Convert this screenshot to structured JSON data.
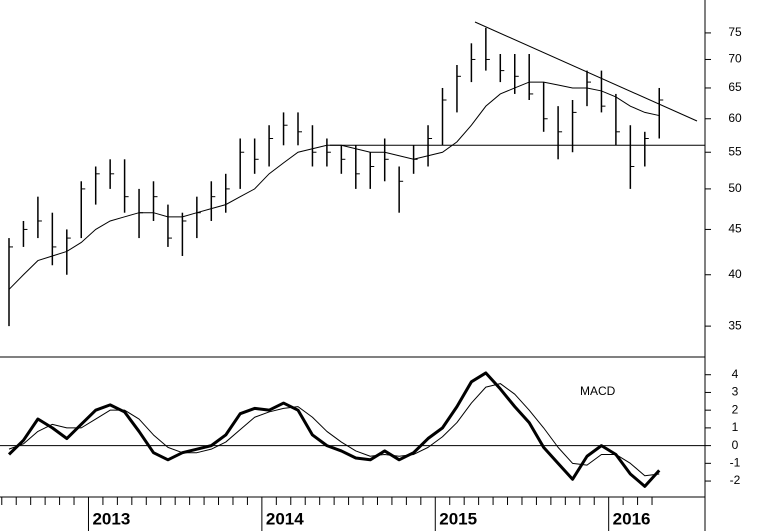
{
  "chart_data": {
    "type": "ohlc",
    "color": "#000000",
    "log_scale": true,
    "categories": [
      null,
      null,
      null,
      null,
      null,
      null,
      "2013",
      null,
      null,
      null,
      null,
      null,
      null,
      null,
      null,
      null,
      null,
      null,
      "2014",
      null,
      null,
      null,
      null,
      null,
      null,
      null,
      null,
      null,
      null,
      null,
      "2015",
      null,
      null,
      null,
      null,
      null,
      null,
      null,
      null,
      null,
      null,
      null,
      "2016",
      null,
      null,
      null
    ],
    "high": [
      44,
      46,
      49,
      47,
      45,
      51,
      53,
      54,
      54,
      50,
      51,
      48,
      47,
      49,
      51,
      52,
      57,
      57,
      59,
      61,
      61,
      59,
      57,
      56,
      56,
      55,
      57,
      53,
      56,
      59,
      65,
      69,
      73,
      76,
      71,
      71,
      71,
      66,
      62,
      63,
      68,
      68,
      64,
      59,
      58,
      65
    ],
    "low": [
      35,
      43,
      44,
      41,
      40,
      44,
      48,
      50,
      47,
      44,
      46,
      43,
      42,
      44,
      46,
      47,
      50,
      52,
      53,
      56,
      56,
      53,
      53,
      52,
      50,
      50,
      51,
      47,
      52,
      53,
      56,
      61,
      66,
      68,
      66,
      64,
      63,
      58,
      54,
      55,
      62,
      61,
      56,
      50,
      53,
      57
    ],
    "close": [
      43,
      45,
      46,
      43,
      44,
      50,
      52,
      52,
      49,
      47,
      49,
      44,
      46,
      47,
      49,
      50,
      55,
      54,
      57,
      59,
      58,
      55,
      55,
      54,
      52,
      53,
      54,
      51,
      54,
      57,
      63,
      67,
      70,
      70,
      68,
      67,
      64,
      60,
      58,
      61,
      66,
      62,
      58,
      53,
      57,
      63
    ],
    "moving_average": [
      38.5,
      40,
      41.5,
      42,
      42.5,
      43.5,
      45,
      46,
      46.5,
      47,
      47,
      46.5,
      46.5,
      47,
      47.5,
      48,
      49,
      50,
      52,
      53.5,
      55,
      55.5,
      56,
      56,
      55.5,
      55,
      55,
      54.5,
      54,
      54.5,
      55,
      56.5,
      59,
      62,
      64,
      65,
      66,
      66,
      65.5,
      65,
      65,
      64.5,
      63.5,
      62,
      61,
      60.5
    ],
    "support_level": 56,
    "ylim": [
      32.3,
      81.7
    ],
    "yticks": [
      35,
      40,
      45,
      50,
      55,
      60,
      65,
      70,
      75
    ],
    "macd": {
      "type": "line",
      "annotation": "MACD",
      "series": [
        {
          "color": "#000000",
          "values": [
            -0.5,
            0.3,
            1.5,
            1.0,
            0.4,
            1.2,
            2.0,
            2.3,
            1.9,
            0.8,
            -0.4,
            -0.8,
            -0.4,
            -0.2,
            0.0,
            0.6,
            1.8,
            2.1,
            2.0,
            2.4,
            2.0,
            0.6,
            0.0,
            -0.3,
            -0.7,
            -0.8,
            -0.3,
            -0.8,
            -0.4,
            0.4,
            1.0,
            2.2,
            3.6,
            4.1,
            3.2,
            2.2,
            1.3,
            -0.1,
            -1.0,
            -1.9,
            -0.6,
            0.0,
            -0.5,
            -1.6,
            -2.3,
            -1.4
          ]
        },
        {
          "color": "#000000",
          "values": [
            -0.2,
            0.1,
            0.8,
            1.2,
            1.0,
            1.0,
            1.5,
            2.0,
            2.0,
            1.5,
            0.6,
            -0.1,
            -0.4,
            -0.4,
            -0.2,
            0.2,
            0.9,
            1.6,
            1.9,
            2.1,
            2.2,
            1.6,
            0.8,
            0.2,
            -0.3,
            -0.6,
            -0.5,
            -0.6,
            -0.5,
            -0.1,
            0.5,
            1.3,
            2.4,
            3.3,
            3.5,
            2.9,
            2.0,
            1.0,
            -0.1,
            -1.0,
            -1.1,
            -0.5,
            -0.5,
            -1.0,
            -1.7,
            -1.6
          ]
        }
      ],
      "zero_line": 0,
      "ylim": [
        -2.9,
        5.0
      ],
      "yticks": [
        -2,
        -1,
        0,
        1,
        2,
        3,
        4
      ]
    }
  }
}
